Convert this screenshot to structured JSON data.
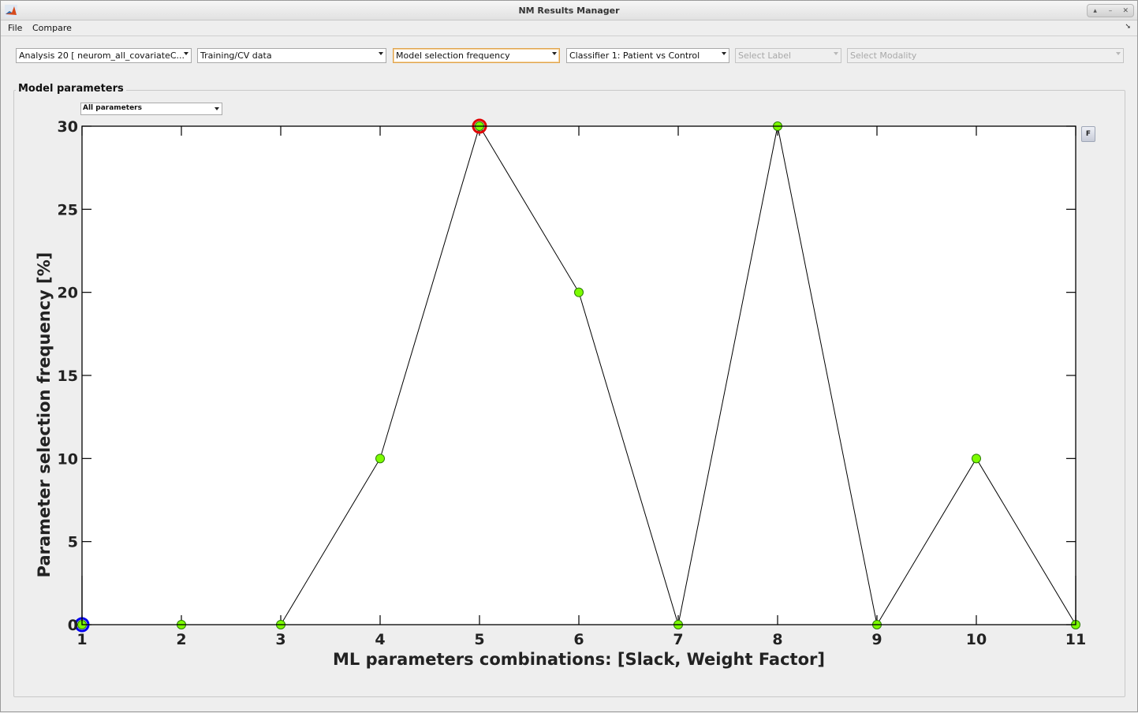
{
  "window": {
    "title": "NM Results Manager"
  },
  "menu": {
    "items": [
      "File",
      "Compare"
    ]
  },
  "dropdowns": {
    "analysis": "Analysis 20 [ neurom_all_covariateC...",
    "dataset": "Training/CV data",
    "view": "Model selection frequency",
    "classifier": "Classifier 1: Patient vs Control",
    "label": "Select Label",
    "modality": "Select Modality"
  },
  "panel": {
    "title": "Model parameters",
    "param_select": "All parameters",
    "f_button": "F"
  },
  "colors": {
    "marker_fill": "#7cfc00",
    "marker_edge": "#2a7a00",
    "line": "#000000",
    "highlight_max": "#e00000",
    "highlight_first": "#0000ee"
  },
  "chart_data": {
    "type": "line",
    "x": [
      1,
      2,
      3,
      4,
      5,
      6,
      7,
      8,
      9,
      10,
      11
    ],
    "values": [
      0,
      0,
      0,
      10,
      30,
      20,
      0,
      30,
      0,
      10,
      0
    ],
    "xlabel": "ML parameters combinations: [Slack, Weight Factor]",
    "ylabel": "Parameter selection frequency [%]",
    "xticks": [
      "1",
      "2",
      "3",
      "4",
      "5",
      "6",
      "7",
      "8",
      "9",
      "10",
      "11"
    ],
    "yticks": [
      "0",
      "5",
      "10",
      "15",
      "20",
      "25",
      "30"
    ],
    "xlim": [
      1,
      11
    ],
    "ylim": [
      0,
      30
    ],
    "grid": false,
    "highlighted_points": {
      "max_circle_x": 5,
      "first_circle_x": 1
    }
  }
}
